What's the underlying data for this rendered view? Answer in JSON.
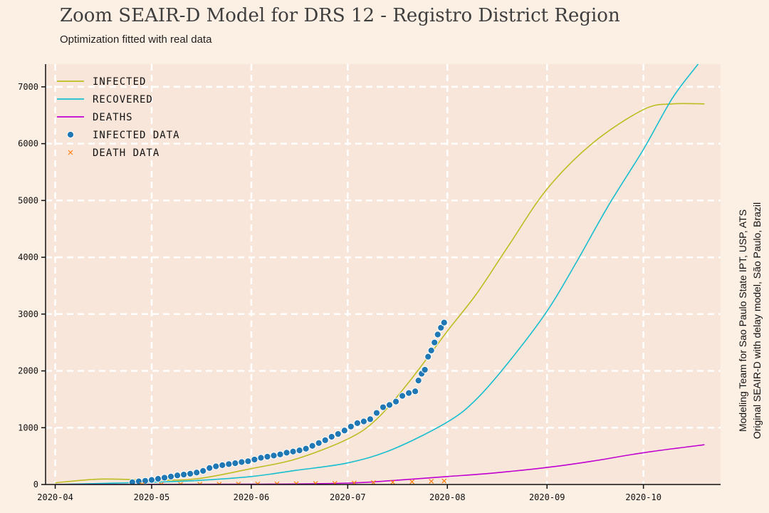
{
  "header": {
    "title": "Zoom SEAIR-D Model for DRS 12 - Registro District Region",
    "subtitle": "Optimization fitted with real data"
  },
  "credits": {
    "line1": "Modeling Team for Sao Paulo State IPT, USP, ATS",
    "line2": "Original SEAIR-D with delay model, São Paulo, Brazil"
  },
  "colors": {
    "page_bg": "#fcefe4",
    "plot_bg": "#f9e6da",
    "grid": "#ffffff",
    "infected": "#bcbd22",
    "recovered": "#17becf",
    "deaths": "#c000d0",
    "infected_data": "#1f77b4",
    "death_data": "#ff7f0e"
  },
  "chart_data": {
    "type": "line",
    "xlabel": "",
    "ylabel": "",
    "x_axis_kind": "date",
    "xlim": [
      "2020-03-29",
      "2020-10-25"
    ],
    "ylim": [
      0,
      7400
    ],
    "x_ticks": [
      "2020-04",
      "2020-05",
      "2020-06",
      "2020-07",
      "2020-08",
      "2020-09",
      "2020-10"
    ],
    "x_tick_dates": [
      "2020-04-01",
      "2020-05-01",
      "2020-06-01",
      "2020-07-01",
      "2020-08-01",
      "2020-09-01",
      "2020-10-01"
    ],
    "y_ticks": [
      0,
      1000,
      2000,
      3000,
      4000,
      5000,
      6000,
      7000
    ],
    "grid": true,
    "legend_position": "top-left",
    "series": [
      {
        "name": "Infected",
        "kind": "line",
        "color_key": "infected",
        "points": [
          [
            "2020-04-01",
            30
          ],
          [
            "2020-04-15",
            95
          ],
          [
            "2020-05-01",
            80
          ],
          [
            "2020-05-15",
            100
          ],
          [
            "2020-06-01",
            280
          ],
          [
            "2020-06-15",
            450
          ],
          [
            "2020-07-01",
            800
          ],
          [
            "2020-07-10",
            1150
          ],
          [
            "2020-07-20",
            1800
          ],
          [
            "2020-08-01",
            2700
          ],
          [
            "2020-08-10",
            3350
          ],
          [
            "2020-08-20",
            4200
          ],
          [
            "2020-09-01",
            5200
          ],
          [
            "2020-09-15",
            6000
          ],
          [
            "2020-10-01",
            6600
          ],
          [
            "2020-10-10",
            6700
          ],
          [
            "2020-10-20",
            6700
          ]
        ]
      },
      {
        "name": "Recovered",
        "kind": "line",
        "color_key": "recovered",
        "points": [
          [
            "2020-04-01",
            0
          ],
          [
            "2020-05-01",
            40
          ],
          [
            "2020-05-15",
            70
          ],
          [
            "2020-06-01",
            140
          ],
          [
            "2020-06-15",
            250
          ],
          [
            "2020-07-01",
            380
          ],
          [
            "2020-07-15",
            620
          ],
          [
            "2020-08-01",
            1100
          ],
          [
            "2020-08-10",
            1500
          ],
          [
            "2020-08-20",
            2150
          ],
          [
            "2020-09-01",
            3050
          ],
          [
            "2020-09-10",
            3900
          ],
          [
            "2020-09-20",
            4900
          ],
          [
            "2020-10-01",
            5900
          ],
          [
            "2020-10-10",
            6800
          ],
          [
            "2020-10-18",
            7400
          ]
        ]
      },
      {
        "name": "Deaths",
        "kind": "line",
        "color_key": "deaths",
        "points": [
          [
            "2020-04-01",
            0
          ],
          [
            "2020-06-01",
            5
          ],
          [
            "2020-07-01",
            25
          ],
          [
            "2020-07-15",
            70
          ],
          [
            "2020-08-01",
            140
          ],
          [
            "2020-08-15",
            200
          ],
          [
            "2020-09-01",
            300
          ],
          [
            "2020-09-15",
            410
          ],
          [
            "2020-10-01",
            560
          ],
          [
            "2020-10-20",
            700
          ]
        ]
      },
      {
        "name": "Infected data",
        "kind": "scatter",
        "color_key": "infected_data",
        "points": [
          [
            "2020-04-25",
            40
          ],
          [
            "2020-04-27",
            55
          ],
          [
            "2020-04-29",
            65
          ],
          [
            "2020-05-01",
            80
          ],
          [
            "2020-05-03",
            100
          ],
          [
            "2020-05-05",
            120
          ],
          [
            "2020-05-07",
            140
          ],
          [
            "2020-05-09",
            160
          ],
          [
            "2020-05-11",
            175
          ],
          [
            "2020-05-13",
            190
          ],
          [
            "2020-05-15",
            210
          ],
          [
            "2020-05-17",
            240
          ],
          [
            "2020-05-19",
            290
          ],
          [
            "2020-05-21",
            320
          ],
          [
            "2020-05-23",
            340
          ],
          [
            "2020-05-25",
            360
          ],
          [
            "2020-05-27",
            375
          ],
          [
            "2020-05-29",
            395
          ],
          [
            "2020-05-31",
            410
          ],
          [
            "2020-06-02",
            440
          ],
          [
            "2020-06-04",
            470
          ],
          [
            "2020-06-06",
            490
          ],
          [
            "2020-06-08",
            510
          ],
          [
            "2020-06-10",
            530
          ],
          [
            "2020-06-12",
            560
          ],
          [
            "2020-06-14",
            580
          ],
          [
            "2020-06-16",
            600
          ],
          [
            "2020-06-18",
            630
          ],
          [
            "2020-06-20",
            680
          ],
          [
            "2020-06-22",
            730
          ],
          [
            "2020-06-24",
            780
          ],
          [
            "2020-06-26",
            840
          ],
          [
            "2020-06-28",
            890
          ],
          [
            "2020-06-30",
            950
          ],
          [
            "2020-07-02",
            1020
          ],
          [
            "2020-07-04",
            1080
          ],
          [
            "2020-07-06",
            1110
          ],
          [
            "2020-07-08",
            1150
          ],
          [
            "2020-07-10",
            1260
          ],
          [
            "2020-07-12",
            1360
          ],
          [
            "2020-07-14",
            1400
          ],
          [
            "2020-07-16",
            1460
          ],
          [
            "2020-07-18",
            1560
          ],
          [
            "2020-07-20",
            1610
          ],
          [
            "2020-07-22",
            1640
          ],
          [
            "2020-07-23",
            1830
          ],
          [
            "2020-07-24",
            1950
          ],
          [
            "2020-07-25",
            2020
          ],
          [
            "2020-07-26",
            2250
          ],
          [
            "2020-07-27",
            2360
          ],
          [
            "2020-07-28",
            2500
          ],
          [
            "2020-07-29",
            2640
          ],
          [
            "2020-07-30",
            2760
          ],
          [
            "2020-07-31",
            2850
          ]
        ]
      },
      {
        "name": "Death data",
        "kind": "scatter",
        "color_key": "death_data",
        "points": [
          [
            "2020-04-28",
            2
          ],
          [
            "2020-05-04",
            3
          ],
          [
            "2020-05-10",
            4
          ],
          [
            "2020-05-16",
            5
          ],
          [
            "2020-05-22",
            6
          ],
          [
            "2020-05-28",
            8
          ],
          [
            "2020-06-03",
            10
          ],
          [
            "2020-06-09",
            12
          ],
          [
            "2020-06-15",
            15
          ],
          [
            "2020-06-21",
            18
          ],
          [
            "2020-06-27",
            22
          ],
          [
            "2020-07-03",
            28
          ],
          [
            "2020-07-09",
            34
          ],
          [
            "2020-07-15",
            40
          ],
          [
            "2020-07-21",
            48
          ],
          [
            "2020-07-27",
            56
          ],
          [
            "2020-07-31",
            62
          ]
        ]
      }
    ]
  }
}
